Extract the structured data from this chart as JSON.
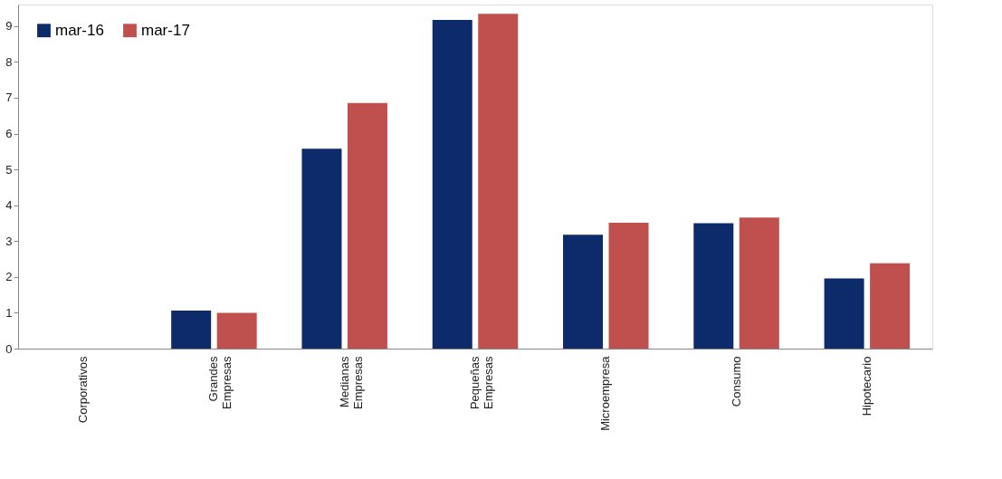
{
  "chart_data": {
    "type": "bar",
    "categories": [
      "Corporativos",
      "Grandes Empresas",
      "Medianas Empresas",
      "Pequeñas Empresas",
      "Microempresa",
      "Consumo",
      "Hipotecario"
    ],
    "series": [
      {
        "name": "mar-16",
        "color": "#0d2a6b",
        "values": [
          0,
          1.06,
          5.58,
          9.17,
          3.18,
          3.5,
          1.96
        ]
      },
      {
        "name": "mar-17",
        "color": "#c0504d",
        "values": [
          0,
          1.0,
          6.85,
          9.34,
          3.51,
          3.66,
          2.38
        ]
      }
    ],
    "ylim": [
      0,
      9.6
    ],
    "yticks": [
      0,
      1,
      2,
      3,
      4,
      5,
      6,
      7,
      8,
      9
    ],
    "grid": false,
    "legend": "top left"
  }
}
